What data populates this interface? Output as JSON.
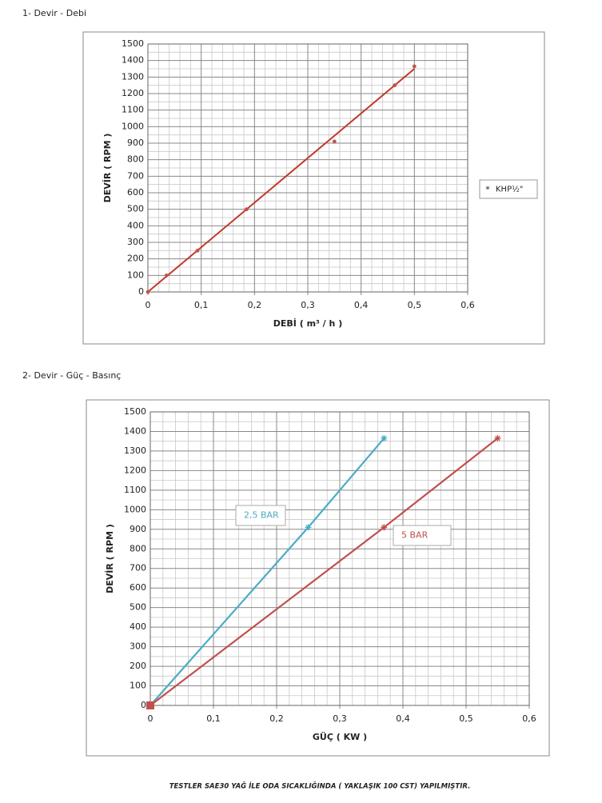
{
  "chart_data": [
    {
      "type": "scatter",
      "title": "1- Devir - Debi",
      "xlabel": "DEBİ ( m³ / h )",
      "ylabel": "DEVİR ( RPM )",
      "series": [
        {
          "name": "KHP½\"",
          "color": "#c0504d",
          "marker": "star",
          "x": [
            0,
            0.035,
            0.093,
            0.185,
            0.35,
            0.463,
            0.5
          ],
          "values": [
            0,
            100,
            250,
            500,
            910,
            1250,
            1365
          ]
        }
      ],
      "trendline": {
        "color": "#c0392b",
        "x": [
          0,
          0.5
        ],
        "values": [
          0,
          1350
        ]
      },
      "xlim": [
        0,
        0.6
      ],
      "xticks": [
        0,
        {
          "value": 0.1,
          "label": "0,1"
        },
        {
          "value": 0.2,
          "label": "0,2"
        },
        {
          "value": 0.3,
          "label": "0,3"
        },
        {
          "value": 0.4,
          "label": "0,4"
        },
        {
          "value": 0.5,
          "label": "0,5"
        },
        {
          "value": 0.6,
          "label": "0,6"
        }
      ],
      "ylim": [
        0,
        1500
      ],
      "yticks": [
        0,
        100,
        200,
        300,
        400,
        500,
        600,
        700,
        800,
        900,
        1000,
        1100,
        1200,
        1300,
        1400,
        1500
      ],
      "grid": true,
      "x_minor": 5,
      "y_minor": 2,
      "legend": "right"
    },
    {
      "type": "line",
      "title": "2- Devir - Güç - Basınç",
      "xlabel": "GÜÇ ( KW )",
      "ylabel": "DEVİR ( RPM )",
      "series": [
        {
          "name": "2,5 BAR",
          "color": "#4bacc6",
          "x": [
            0,
            0.25,
            0.37
          ],
          "values": [
            0,
            910,
            1365
          ]
        },
        {
          "name": "5 BAR",
          "color": "#c0504d",
          "x": [
            0,
            0.37,
            0.55
          ],
          "values": [
            0,
            910,
            1365
          ]
        }
      ],
      "xlim": [
        0,
        0.6
      ],
      "xticks": [
        0,
        {
          "value": 0.1,
          "label": "0,1"
        },
        {
          "value": 0.2,
          "label": "0,2"
        },
        {
          "value": 0.3,
          "label": "0,3"
        },
        {
          "value": 0.4,
          "label": "0,4"
        },
        {
          "value": 0.5,
          "label": "0,5"
        },
        {
          "value": 0.6,
          "label": "0,6"
        }
      ],
      "ylim": [
        0,
        1500
      ],
      "yticks": [
        0,
        100,
        200,
        300,
        400,
        500,
        600,
        700,
        800,
        900,
        1000,
        1100,
        1200,
        1300,
        1400,
        1500
      ],
      "grid": true,
      "x_minor": 5,
      "y_minor": 2,
      "legend": "inline"
    }
  ],
  "footer": "TESTLER SAE30 YAĞ İLE ODA SICAKLIĞINDA ( YAKLAŞIK 100 CST) YAPILMIŞTIR."
}
